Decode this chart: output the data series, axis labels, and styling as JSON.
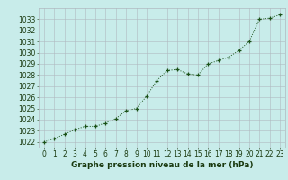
{
  "x": [
    0,
    1,
    2,
    3,
    4,
    5,
    6,
    7,
    8,
    9,
    10,
    11,
    12,
    13,
    14,
    15,
    16,
    17,
    18,
    19,
    20,
    21,
    22,
    23
  ],
  "y": [
    1022.0,
    1022.3,
    1022.7,
    1023.1,
    1023.4,
    1023.4,
    1023.7,
    1024.1,
    1024.8,
    1025.0,
    1026.1,
    1027.5,
    1028.4,
    1028.5,
    1028.1,
    1028.0,
    1029.0,
    1029.3,
    1029.6,
    1030.2,
    1031.0,
    1033.0,
    1033.1,
    1033.4
  ],
  "line_color": "#1a5218",
  "marker_color": "#1a5218",
  "bg_color": "#c8ecea",
  "plot_bg_color": "#c8ecea",
  "grid_color": "#b0b8c0",
  "xlabel": "Graphe pression niveau de la mer (hPa)",
  "xlabel_fontsize": 6.5,
  "xlabel_color": "#1a3a10",
  "tick_color": "#1a3a10",
  "tick_fontsize": 5.5,
  "ylim": [
    1021.5,
    1034.0
  ],
  "yticks": [
    1022,
    1023,
    1024,
    1025,
    1026,
    1027,
    1028,
    1029,
    1030,
    1031,
    1032,
    1033
  ],
  "xticks": [
    0,
    1,
    2,
    3,
    4,
    5,
    6,
    7,
    8,
    9,
    10,
    11,
    12,
    13,
    14,
    15,
    16,
    17,
    18,
    19,
    20,
    21,
    22,
    23
  ]
}
